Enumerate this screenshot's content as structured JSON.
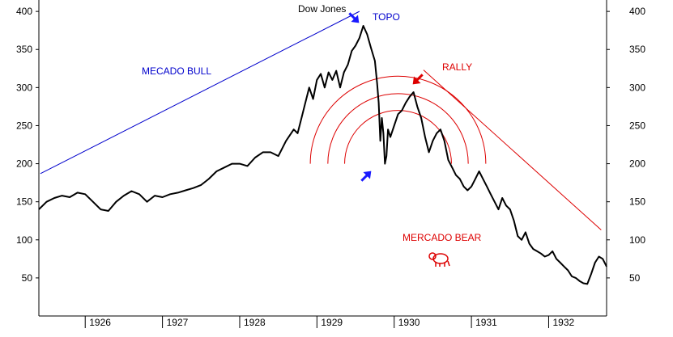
{
  "chart_data": {
    "type": "line",
    "title": "Dow Jones",
    "xlabel": "",
    "ylabel": "",
    "ylim": [
      0,
      415
    ],
    "xlim": [
      1925.4,
      1932.75
    ],
    "y_ticks": [
      50,
      100,
      150,
      200,
      250,
      300,
      350,
      400
    ],
    "x_ticks": [
      "1926",
      "1927",
      "1928",
      "1929",
      "1930",
      "1931",
      "1932"
    ],
    "grid": false,
    "legend": "none",
    "series": [
      {
        "color": "#000000",
        "points": [
          [
            1925.4,
            140
          ],
          [
            1925.5,
            150
          ],
          [
            1925.6,
            155
          ],
          [
            1925.7,
            158
          ],
          [
            1925.8,
            156
          ],
          [
            1925.9,
            162
          ],
          [
            1926.0,
            160
          ],
          [
            1926.1,
            150
          ],
          [
            1926.2,
            140
          ],
          [
            1926.3,
            138
          ],
          [
            1926.4,
            150
          ],
          [
            1926.5,
            158
          ],
          [
            1926.6,
            164
          ],
          [
            1926.7,
            160
          ],
          [
            1926.8,
            150
          ],
          [
            1926.9,
            158
          ],
          [
            1927.0,
            156
          ],
          [
            1927.1,
            160
          ],
          [
            1927.2,
            162
          ],
          [
            1927.3,
            165
          ],
          [
            1927.4,
            168
          ],
          [
            1927.5,
            172
          ],
          [
            1927.6,
            180
          ],
          [
            1927.7,
            190
          ],
          [
            1927.8,
            195
          ],
          [
            1927.9,
            200
          ],
          [
            1928.0,
            200
          ],
          [
            1928.1,
            197
          ],
          [
            1928.2,
            208
          ],
          [
            1928.3,
            215
          ],
          [
            1928.4,
            215
          ],
          [
            1928.5,
            210
          ],
          [
            1928.6,
            230
          ],
          [
            1928.7,
            245
          ],
          [
            1928.75,
            240
          ],
          [
            1928.8,
            260
          ],
          [
            1928.85,
            280
          ],
          [
            1928.9,
            300
          ],
          [
            1928.95,
            285
          ],
          [
            1929.0,
            310
          ],
          [
            1929.05,
            318
          ],
          [
            1929.1,
            300
          ],
          [
            1929.15,
            320
          ],
          [
            1929.2,
            310
          ],
          [
            1929.25,
            322
          ],
          [
            1929.3,
            300
          ],
          [
            1929.35,
            320
          ],
          [
            1929.4,
            330
          ],
          [
            1929.45,
            348
          ],
          [
            1929.5,
            355
          ],
          [
            1929.55,
            365
          ],
          [
            1929.6,
            381
          ],
          [
            1929.65,
            370
          ],
          [
            1929.7,
            352
          ],
          [
            1929.75,
            335
          ],
          [
            1929.78,
            305
          ],
          [
            1929.8,
            280
          ],
          [
            1929.82,
            230
          ],
          [
            1929.84,
            260
          ],
          [
            1929.86,
            240
          ],
          [
            1929.88,
            200
          ],
          [
            1929.9,
            210
          ],
          [
            1929.92,
            245
          ],
          [
            1929.95,
            235
          ],
          [
            1930.0,
            250
          ],
          [
            1930.05,
            265
          ],
          [
            1930.1,
            270
          ],
          [
            1930.15,
            280
          ],
          [
            1930.2,
            288
          ],
          [
            1930.25,
            294
          ],
          [
            1930.3,
            275
          ],
          [
            1930.35,
            260
          ],
          [
            1930.4,
            235
          ],
          [
            1930.45,
            215
          ],
          [
            1930.5,
            230
          ],
          [
            1930.55,
            240
          ],
          [
            1930.6,
            245
          ],
          [
            1930.65,
            230
          ],
          [
            1930.7,
            205
          ],
          [
            1930.75,
            195
          ],
          [
            1930.8,
            185
          ],
          [
            1930.85,
            180
          ],
          [
            1930.9,
            170
          ],
          [
            1930.95,
            165
          ],
          [
            1931.0,
            170
          ],
          [
            1931.05,
            180
          ],
          [
            1931.1,
            190
          ],
          [
            1931.15,
            180
          ],
          [
            1931.2,
            170
          ],
          [
            1931.25,
            160
          ],
          [
            1931.3,
            150
          ],
          [
            1931.35,
            140
          ],
          [
            1931.4,
            155
          ],
          [
            1931.45,
            145
          ],
          [
            1931.5,
            140
          ],
          [
            1931.55,
            125
          ],
          [
            1931.6,
            105
          ],
          [
            1931.65,
            100
          ],
          [
            1931.7,
            110
          ],
          [
            1931.75,
            95
          ],
          [
            1931.8,
            88
          ],
          [
            1931.85,
            85
          ],
          [
            1931.9,
            82
          ],
          [
            1931.95,
            78
          ],
          [
            1932.0,
            80
          ],
          [
            1932.05,
            85
          ],
          [
            1932.1,
            75
          ],
          [
            1932.15,
            70
          ],
          [
            1932.2,
            65
          ],
          [
            1932.25,
            60
          ],
          [
            1932.3,
            52
          ],
          [
            1932.35,
            50
          ],
          [
            1932.4,
            46
          ],
          [
            1932.45,
            43
          ],
          [
            1932.5,
            42
          ],
          [
            1932.55,
            55
          ],
          [
            1932.6,
            70
          ],
          [
            1932.65,
            78
          ],
          [
            1932.7,
            75
          ],
          [
            1932.75,
            65
          ]
        ]
      }
    ],
    "annotations": {
      "topo": "TOPO",
      "rally": "RALLY",
      "bull": "MECADO BULL",
      "bear": "MERCADO BEAR"
    },
    "bull_line": {
      "start": [
        1925.42,
        187
      ],
      "end": [
        1929.55,
        400
      ]
    },
    "bear_line": {
      "start": [
        1930.38,
        323
      ],
      "end": [
        1932.68,
        113
      ]
    },
    "arcs": {
      "center": [
        1930.05,
        200
      ],
      "radii_y": [
        115,
        92,
        70
      ]
    }
  },
  "colors": {
    "line": "#000000",
    "axis": "#000000",
    "bull": "#0000cc",
    "bear": "#dd0000",
    "arrow": "#1a1aff"
  }
}
